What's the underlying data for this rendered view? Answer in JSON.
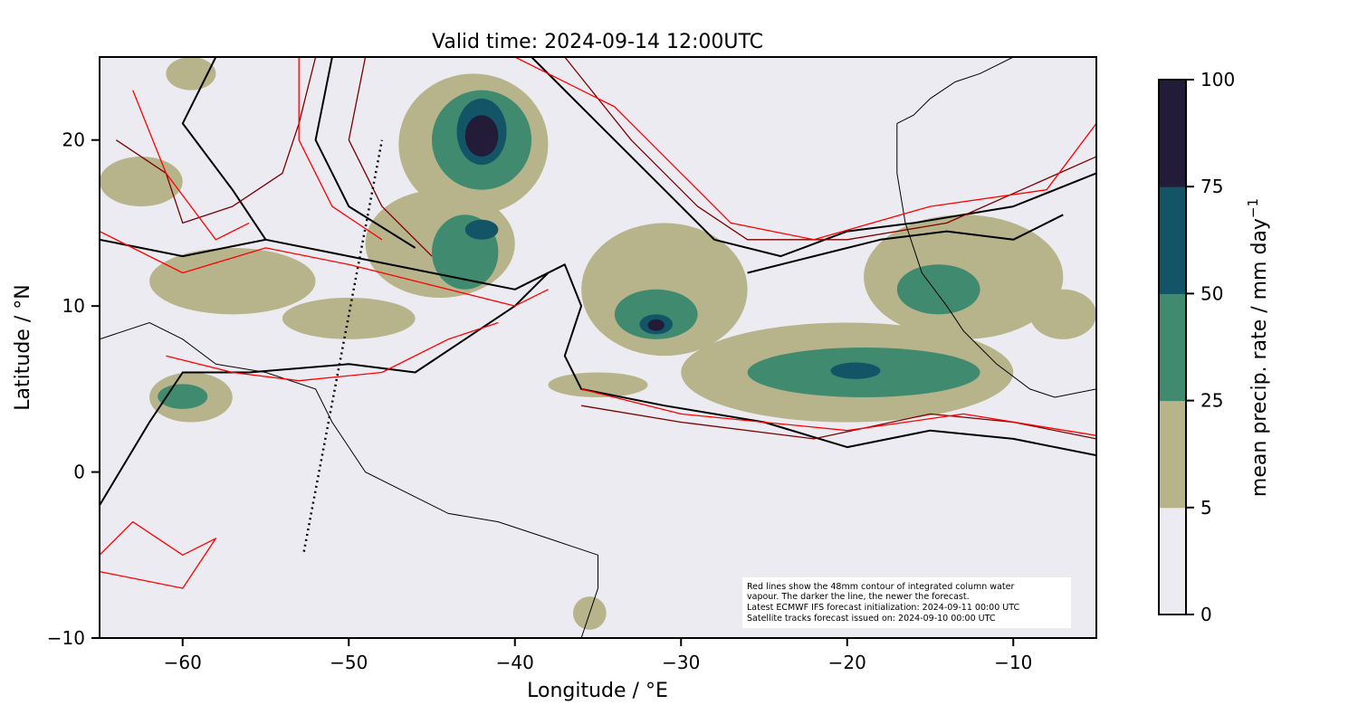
{
  "chart_data": {
    "type": "heatmap",
    "title": "Valid time: 2024-09-14 12:00UTC",
    "xlabel": "Longitude / °E",
    "ylabel": "Latitude / °N",
    "xlim": [
      -65,
      -5
    ],
    "ylim": [
      -10,
      25
    ],
    "x_ticks": [
      -60,
      -50,
      -40,
      -30,
      -20,
      -10
    ],
    "x_tick_labels": [
      "−60",
      "−50",
      "−40",
      "−30",
      "−20",
      "−10"
    ],
    "y_ticks": [
      -10,
      0,
      10,
      20
    ],
    "y_tick_labels": [
      "−10",
      "0",
      "10",
      "20"
    ],
    "colorbar": {
      "label": "mean precip. rate / mm day",
      "label_superscript": "−1",
      "bounds": [
        0,
        5,
        25,
        50,
        75,
        100
      ],
      "tick_labels": [
        "0",
        "5",
        "25",
        "50",
        "75",
        "100"
      ],
      "colors": [
        "#ecebf1",
        "#b7b48b",
        "#408b70",
        "#135566",
        "#221c38"
      ]
    },
    "background_color": "#ecebf1",
    "contour_colors": [
      "#ff0000",
      "#cc0000",
      "#7a0000",
      "#000000"
    ],
    "precip_regions": [
      {
        "level": 1,
        "lon": [
          -47,
          -38
        ],
        "lat": [
          15.5,
          24
        ]
      },
      {
        "level": 2,
        "lon": [
          -45,
          -39
        ],
        "lat": [
          17,
          23
        ]
      },
      {
        "level": 3,
        "lon": [
          -43.5,
          -40.5
        ],
        "lat": [
          18.5,
          22.5
        ]
      },
      {
        "level": 4,
        "lon": [
          -43,
          -41
        ],
        "lat": [
          19,
          21.5
        ]
      },
      {
        "level": 1,
        "lon": [
          -49,
          -40
        ],
        "lat": [
          10.5,
          17
        ]
      },
      {
        "level": 2,
        "lon": [
          -45,
          -41
        ],
        "lat": [
          11,
          15.5
        ]
      },
      {
        "level": 3,
        "lon": [
          -43,
          -41
        ],
        "lat": [
          14,
          15.2
        ]
      },
      {
        "level": 1,
        "lon": [
          -36,
          -26
        ],
        "lat": [
          7,
          15
        ]
      },
      {
        "level": 2,
        "lon": [
          -34,
          -29
        ],
        "lat": [
          8,
          11
        ]
      },
      {
        "level": 3,
        "lon": [
          -32.5,
          -30.5
        ],
        "lat": [
          8.3,
          9.5
        ]
      },
      {
        "level": 4,
        "lon": [
          -32,
          -31
        ],
        "lat": [
          8.5,
          9.2
        ]
      },
      {
        "level": 1,
        "lon": [
          -30,
          -10
        ],
        "lat": [
          3,
          9
        ]
      },
      {
        "level": 2,
        "lon": [
          -26,
          -12
        ],
        "lat": [
          4.5,
          7.5
        ]
      },
      {
        "level": 3,
        "lon": [
          -21,
          -18
        ],
        "lat": [
          5.6,
          6.6
        ]
      },
      {
        "level": 1,
        "lon": [
          -19,
          -7
        ],
        "lat": [
          8,
          15.5
        ]
      },
      {
        "level": 2,
        "lon": [
          -17,
          -12
        ],
        "lat": [
          9.5,
          12.5
        ]
      },
      {
        "level": 1,
        "lon": [
          -62,
          -52
        ],
        "lat": [
          9.5,
          13.5
        ]
      },
      {
        "level": 1,
        "lon": [
          -65,
          -60
        ],
        "lat": [
          16,
          19
        ]
      },
      {
        "level": 1,
        "lon": [
          -62,
          -57
        ],
        "lat": [
          3,
          6
        ]
      },
      {
        "level": 2,
        "lon": [
          -61.5,
          -58.5
        ],
        "lat": [
          3.8,
          5.3
        ]
      },
      {
        "level": 1,
        "lon": [
          -54,
          -46
        ],
        "lat": [
          8,
          10.5
        ]
      },
      {
        "level": 1,
        "lon": [
          -9,
          -5
        ],
        "lat": [
          8,
          11
        ]
      },
      {
        "level": 1,
        "lon": [
          -38,
          -32
        ],
        "lat": [
          4.5,
          6
        ]
      },
      {
        "level": 1,
        "lon": [
          -61,
          -58
        ],
        "lat": [
          23,
          25
        ]
      },
      {
        "level": 1,
        "lon": [
          -36.5,
          -34.5
        ],
        "lat": [
          -9.5,
          -7.5
        ]
      }
    ],
    "contours": [
      {
        "color_index": 3,
        "points": [
          [
            -65,
            14
          ],
          [
            -60,
            13
          ],
          [
            -55,
            14
          ],
          [
            -50,
            13
          ],
          [
            -45,
            12
          ],
          [
            -40,
            11
          ],
          [
            -37,
            12.5
          ],
          [
            -36,
            10
          ],
          [
            -37,
            7
          ],
          [
            -36,
            5
          ],
          [
            -31,
            4
          ],
          [
            -25,
            3
          ],
          [
            -20,
            1.5
          ],
          [
            -15,
            2.5
          ],
          [
            -10,
            2
          ],
          [
            -5,
            1
          ]
        ]
      },
      {
        "color_index": 3,
        "points": [
          [
            -65,
            -2
          ],
          [
            -62,
            3
          ],
          [
            -60,
            6
          ],
          [
            -56,
            6
          ],
          [
            -50,
            6.5
          ],
          [
            -46,
            6
          ],
          [
            -43,
            8
          ],
          [
            -40,
            10
          ],
          [
            -38,
            12
          ]
        ]
      },
      {
        "color_index": 3,
        "points": [
          [
            -58,
            25
          ],
          [
            -60,
            21
          ],
          [
            -57,
            17
          ],
          [
            -55,
            14
          ]
        ]
      },
      {
        "color_index": 3,
        "points": [
          [
            -51,
            25
          ],
          [
            -52,
            20
          ],
          [
            -50,
            16
          ],
          [
            -46,
            13.5
          ]
        ]
      },
      {
        "color_index": 3,
        "points": [
          [
            -39,
            25
          ],
          [
            -35,
            21
          ],
          [
            -31,
            17
          ],
          [
            -28,
            14
          ],
          [
            -24,
            13
          ],
          [
            -20,
            14.5
          ],
          [
            -16,
            15
          ],
          [
            -10,
            16
          ],
          [
            -5,
            18
          ]
        ]
      },
      {
        "color_index": 3,
        "points": [
          [
            -26,
            12
          ],
          [
            -22,
            13
          ],
          [
            -18,
            14
          ],
          [
            -14,
            14.5
          ],
          [
            -10,
            14
          ],
          [
            -7,
            15.5
          ]
        ]
      },
      {
        "color_index": 2,
        "points": [
          [
            -64,
            20
          ],
          [
            -61,
            18
          ],
          [
            -60,
            15
          ],
          [
            -57,
            16
          ],
          [
            -54,
            18
          ],
          [
            -53,
            21
          ],
          [
            -52,
            25
          ]
        ]
      },
      {
        "color_index": 2,
        "points": [
          [
            -49,
            25
          ],
          [
            -50,
            20
          ],
          [
            -48,
            16
          ],
          [
            -45,
            13
          ]
        ]
      },
      {
        "color_index": 2,
        "points": [
          [
            -37,
            25
          ],
          [
            -33,
            20
          ],
          [
            -29,
            16
          ],
          [
            -26,
            14
          ],
          [
            -20,
            14
          ],
          [
            -14,
            15
          ],
          [
            -5,
            19
          ]
        ]
      },
      {
        "color_index": 2,
        "points": [
          [
            -36,
            4
          ],
          [
            -30,
            3
          ],
          [
            -22,
            2
          ],
          [
            -15,
            3.5
          ],
          [
            -10,
            3
          ],
          [
            -5,
            2
          ]
        ]
      },
      {
        "color_index": 0,
        "points": [
          [
            -65,
            14.5
          ],
          [
            -60,
            12
          ],
          [
            -55,
            13.5
          ],
          [
            -50,
            12.5
          ],
          [
            -44,
            11
          ],
          [
            -40,
            10
          ],
          [
            -38,
            11
          ]
        ]
      },
      {
        "color_index": 0,
        "points": [
          [
            -63,
            23
          ],
          [
            -61,
            18
          ],
          [
            -58,
            14
          ],
          [
            -56,
            15
          ]
        ]
      },
      {
        "color_index": 0,
        "points": [
          [
            -53,
            25
          ],
          [
            -53,
            20
          ],
          [
            -51,
            16
          ],
          [
            -48,
            14
          ]
        ]
      },
      {
        "color_index": 0,
        "points": [
          [
            -40,
            25
          ],
          [
            -34,
            22
          ],
          [
            -30,
            18
          ],
          [
            -27,
            15
          ],
          [
            -22,
            14
          ],
          [
            -15,
            16
          ],
          [
            -8,
            17
          ],
          [
            -5,
            21
          ]
        ]
      },
      {
        "color_index": 0,
        "points": [
          [
            -36,
            5
          ],
          [
            -30,
            3.5
          ],
          [
            -20,
            2.5
          ],
          [
            -13,
            3.5
          ],
          [
            -5,
            2.2
          ]
        ]
      },
      {
        "color_index": 0,
        "points": [
          [
            -65,
            -5
          ],
          [
            -63,
            -3
          ],
          [
            -60,
            -5
          ],
          [
            -58,
            -4
          ],
          [
            -60,
            -7
          ],
          [
            -65,
            -6
          ]
        ]
      },
      {
        "color_index": 0,
        "points": [
          [
            -61,
            7
          ],
          [
            -57,
            6
          ],
          [
            -53,
            5.5
          ],
          [
            -48,
            6
          ],
          [
            -44,
            8
          ],
          [
            -41,
            9
          ]
        ]
      }
    ],
    "coastlines": [
      {
        "points": [
          [
            -65,
            8
          ],
          [
            -62,
            9
          ],
          [
            -60,
            8
          ],
          [
            -58,
            6.5
          ],
          [
            -55,
            6
          ],
          [
            -52,
            5
          ],
          [
            -51,
            3
          ],
          [
            -50,
            1.5
          ],
          [
            -49,
            0
          ],
          [
            -47,
            -1
          ],
          [
            -44,
            -2.5
          ],
          [
            -41,
            -3
          ],
          [
            -38,
            -4
          ],
          [
            -35,
            -5
          ],
          [
            -35,
            -7
          ],
          [
            -36,
            -10
          ]
        ]
      },
      {
        "points": [
          [
            -17,
            21
          ],
          [
            -17,
            18
          ],
          [
            -16.5,
            15
          ],
          [
            -15.5,
            12
          ],
          [
            -14,
            10
          ],
          [
            -13,
            8.5
          ],
          [
            -11,
            6.5
          ],
          [
            -9,
            5
          ],
          [
            -7.5,
            4.5
          ],
          [
            -5,
            5
          ]
        ]
      },
      {
        "points": [
          [
            -10,
            25
          ],
          [
            -12,
            24
          ],
          [
            -13.5,
            23.5
          ],
          [
            -15,
            22.5
          ],
          [
            -16,
            21.5
          ],
          [
            -17,
            21
          ]
        ]
      }
    ],
    "satellite_track": [
      [
        -52.7,
        -4.8
      ],
      [
        -48,
        20
      ]
    ],
    "annotation_lines": [
      "Red lines show the 48mm contour of integrated column water",
      "vapour. The darker the line, the newer the forecast.",
      "Latest ECMWF IFS forecast initialization: 2024-09-11 00:00 UTC",
      "Satellite tracks forecast issued on: 2024-09-10 00:00 UTC"
    ]
  }
}
